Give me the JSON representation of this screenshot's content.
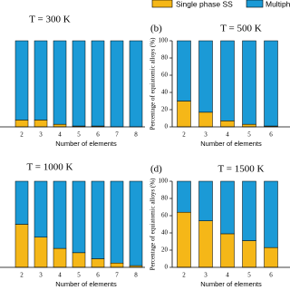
{
  "chart_data": [
    {
      "type": "bar",
      "stacked": true,
      "title": "T = 300 K",
      "x_label": "Number of elements",
      "categories": [
        2,
        3,
        4,
        5,
        6,
        7,
        8
      ],
      "ylim": [
        0,
        100
      ],
      "series": [
        {
          "name": "Single phase SS",
          "color": "#f5b718",
          "values": [
            8,
            8,
            3,
            1,
            1,
            0,
            0
          ]
        },
        {
          "name": "Multiphas",
          "color": "#1b9ad6",
          "values": [
            92,
            92,
            97,
            99,
            99,
            100,
            100
          ]
        }
      ]
    },
    {
      "type": "bar",
      "stacked": true,
      "panel_label": "(b)",
      "title": "T = 500 K",
      "x_label": "Number of elements",
      "y_label": "Percentage of equiatomic alloys (%)",
      "categories": [
        2,
        3,
        4,
        5,
        6
      ],
      "ylim": [
        0,
        100
      ],
      "yticks": [
        0,
        20,
        40,
        60,
        80,
        100
      ],
      "series": [
        {
          "color": "#f5b718",
          "values": [
            30,
            17,
            7,
            3,
            1
          ]
        },
        {
          "color": "#1b9ad6",
          "values": [
            70,
            83,
            93,
            97,
            99
          ]
        }
      ]
    },
    {
      "type": "bar",
      "stacked": true,
      "title": "T = 1000 K",
      "x_label": "Number of elements",
      "categories": [
        2,
        3,
        4,
        5,
        6,
        7,
        8
      ],
      "ylim": [
        0,
        100
      ],
      "series": [
        {
          "color": "#f5b718",
          "values": [
            50,
            35,
            22,
            17,
            10,
            5,
            2
          ]
        },
        {
          "color": "#1b9ad6",
          "values": [
            50,
            65,
            78,
            83,
            90,
            95,
            98
          ]
        }
      ]
    },
    {
      "type": "bar",
      "stacked": true,
      "panel_label": "(d)",
      "title": "T = 1500 K",
      "x_label": "Number of elements",
      "y_label": "Percentage of equiatomic alloys (%)",
      "categories": [
        2,
        3,
        4,
        5,
        6
      ],
      "ylim": [
        0,
        100
      ],
      "yticks": [
        0,
        20,
        40,
        60,
        80,
        100
      ],
      "series": [
        {
          "color": "#f5b718",
          "values": [
            64,
            54,
            39,
            31,
            23
          ]
        },
        {
          "color": "#1b9ad6",
          "values": [
            36,
            46,
            61,
            69,
            77
          ]
        }
      ]
    }
  ]
}
